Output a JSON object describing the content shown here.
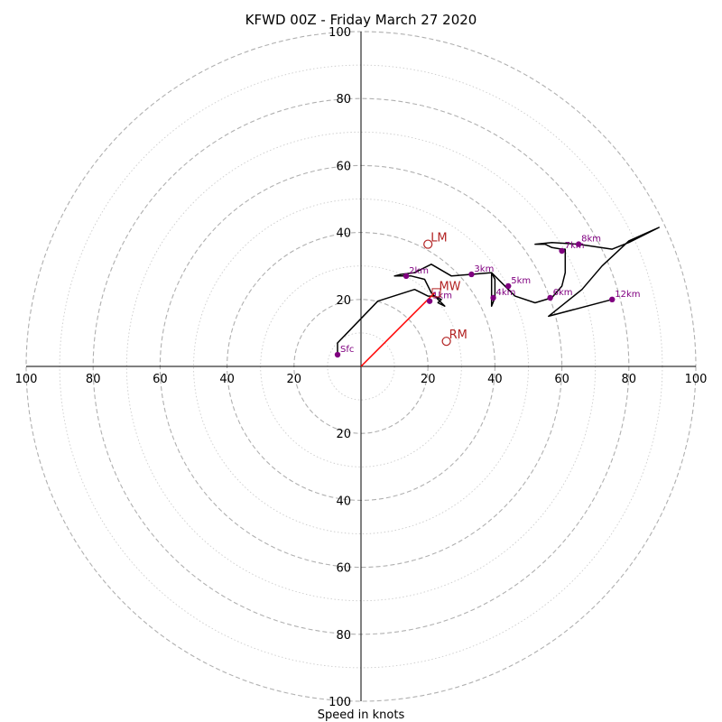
{
  "chart_data": {
    "type": "hodograph",
    "title": "KFWD 00Z - Friday March 27 2020",
    "xlabel": "Speed in knots",
    "max_speed": 100,
    "ring_labels": [
      "100",
      "80",
      "60",
      "40",
      "20",
      "20",
      "40",
      "60",
      "80",
      "100"
    ],
    "ring_values": [
      -100,
      -80,
      -60,
      -40,
      -20,
      20,
      40,
      60,
      80,
      100
    ],
    "colors": {
      "trace": "#000000",
      "height_marker": "#800080",
      "motion": "#b22222",
      "shear_vector": "#ff0000",
      "grid": "#b0b0b0"
    },
    "trace": [
      [
        -7,
        4
      ],
      [
        -7,
        7
      ],
      [
        5,
        19.5
      ],
      [
        16,
        23
      ],
      [
        20,
        21
      ],
      [
        22,
        21
      ],
      [
        24,
        20
      ],
      [
        23,
        19
      ],
      [
        25,
        18
      ],
      [
        21,
        22
      ],
      [
        19,
        26
      ],
      [
        15,
        27
      ],
      [
        10,
        27
      ],
      [
        12,
        27.5
      ],
      [
        16,
        28
      ],
      [
        21,
        30.5
      ],
      [
        27,
        27
      ],
      [
        33,
        27.5
      ],
      [
        39,
        28
      ],
      [
        39,
        26
      ],
      [
        39,
        18
      ],
      [
        40,
        20.5
      ],
      [
        40,
        26
      ],
      [
        39,
        28
      ],
      [
        44,
        23
      ],
      [
        46,
        21
      ],
      [
        52,
        19
      ],
      [
        57,
        20.5
      ],
      [
        60,
        24
      ],
      [
        61,
        28
      ],
      [
        61,
        31
      ],
      [
        61,
        35
      ],
      [
        60,
        35
      ],
      [
        57,
        35.5
      ],
      [
        55,
        36.5
      ],
      [
        52,
        36.5
      ],
      [
        57,
        37
      ],
      [
        65,
        36.5
      ],
      [
        75,
        35
      ],
      [
        80,
        37
      ],
      [
        89,
        41.5
      ],
      [
        80,
        37.5
      ],
      [
        72,
        30
      ],
      [
        66,
        23
      ],
      [
        56,
        15
      ],
      [
        75,
        20
      ]
    ],
    "height_markers": [
      {
        "label": "Sfc",
        "u": -7,
        "v": 3.5
      },
      {
        "label": "1km",
        "u": 20.5,
        "v": 19.5
      },
      {
        "label": "2km",
        "u": 13.5,
        "v": 27
      },
      {
        "label": "3km",
        "u": 33,
        "v": 27.5
      },
      {
        "label": "4km",
        "u": 39.5,
        "v": 20.5
      },
      {
        "label": "5km",
        "u": 44,
        "v": 24
      },
      {
        "label": "6km",
        "u": 56.5,
        "v": 20.5
      },
      {
        "label": "7km",
        "u": 60,
        "v": 34.5
      },
      {
        "label": "8km",
        "u": 65,
        "v": 36.5
      },
      {
        "label": "12km",
        "u": 75,
        "v": 20
      }
    ],
    "storm_motions": [
      {
        "label": "LM",
        "u": 20,
        "v": 36.5,
        "symbol": "circle"
      },
      {
        "label": "MW",
        "u": 22.5,
        "v": 22,
        "symbol": "square"
      },
      {
        "label": "RM",
        "u": 25.5,
        "v": 7.5,
        "symbol": "circle"
      }
    ],
    "shear_vector": {
      "from": [
        0,
        0
      ],
      "to": [
        22,
        22
      ]
    }
  }
}
